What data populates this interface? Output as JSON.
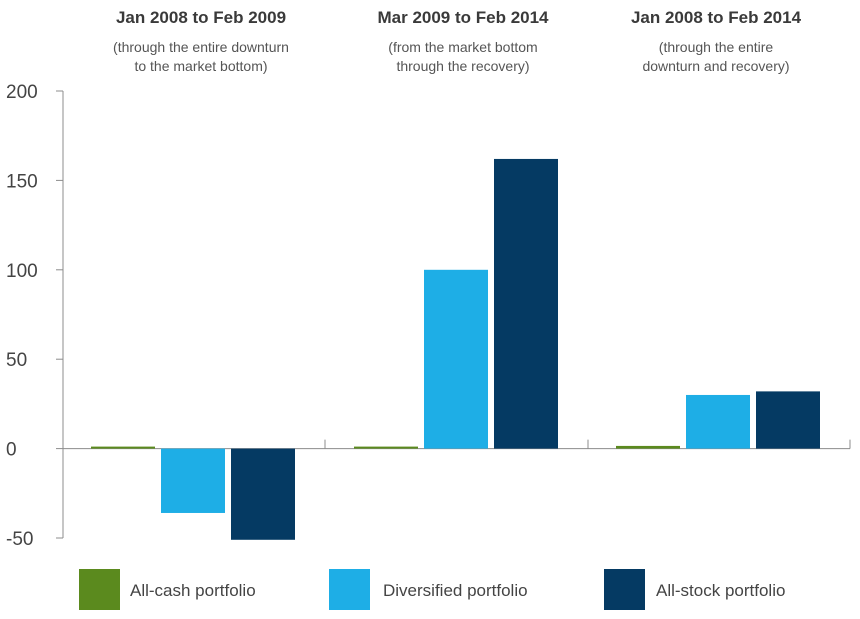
{
  "chart_data": {
    "type": "bar",
    "categories": [
      {
        "title": "Jan 2008 to Feb 2009",
        "subtitle_lines": [
          "(through the entire downturn",
          "to the market bottom)"
        ]
      },
      {
        "title": "Mar 2009 to Feb 2014",
        "subtitle_lines": [
          "(from the market bottom",
          "through the recovery)"
        ]
      },
      {
        "title": "Jan 2008 to Feb 2014",
        "subtitle_lines": [
          "(through the entire",
          "downturn and recovery)"
        ]
      }
    ],
    "series": [
      {
        "name": "All-cash portfolio",
        "color": "#5b8a1e",
        "values": [
          1,
          0.2,
          1.5
        ]
      },
      {
        "name": "Diversified portfolio",
        "color": "#1eaee6",
        "values": [
          -36,
          100,
          30
        ]
      },
      {
        "name": "All-stock portfolio",
        "color": "#053a63",
        "values": [
          -51,
          162,
          32
        ]
      }
    ],
    "ylim": [
      -50,
      200
    ],
    "yticks": [
      "-50",
      "0",
      "50",
      "100",
      "150",
      "200"
    ],
    "grid": false,
    "legend_position": "bottom"
  }
}
